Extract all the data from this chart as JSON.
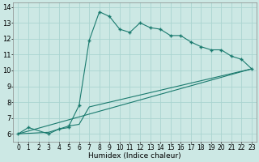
{
  "xlabel": "Humidex (Indice chaleur)",
  "bg_color": "#cce8e4",
  "line_color": "#1a7a6e",
  "grid_color": "#aad4d0",
  "xlim": [
    -0.5,
    23.5
  ],
  "ylim": [
    5.5,
    14.3
  ],
  "xticks": [
    0,
    1,
    2,
    3,
    4,
    5,
    6,
    7,
    8,
    9,
    10,
    11,
    12,
    13,
    14,
    15,
    16,
    17,
    18,
    19,
    20,
    21,
    22,
    23
  ],
  "yticks": [
    6,
    7,
    8,
    9,
    10,
    11,
    12,
    13,
    14
  ],
  "line1_x": [
    0,
    1,
    3,
    4,
    5,
    5,
    6,
    7,
    8,
    9,
    10,
    11,
    12,
    13,
    14,
    15,
    16,
    17,
    18,
    19,
    20,
    21,
    22,
    23
  ],
  "line1_y": [
    6.0,
    6.4,
    6.0,
    6.3,
    6.4,
    6.5,
    7.8,
    11.9,
    13.7,
    13.4,
    12.6,
    12.4,
    13.0,
    12.7,
    12.6,
    12.2,
    12.2,
    11.8,
    11.5,
    11.3,
    11.3,
    10.9,
    10.7,
    10.1
  ],
  "line2_x": [
    0,
    3,
    4,
    5,
    6,
    7,
    23
  ],
  "line2_y": [
    6.0,
    6.1,
    6.3,
    6.5,
    6.6,
    7.7,
    10.1
  ],
  "line3_x": [
    0,
    23
  ],
  "line3_y": [
    6.0,
    10.1
  ],
  "xlabel_fontsize": 6.5,
  "tick_fontsize": 5.5
}
